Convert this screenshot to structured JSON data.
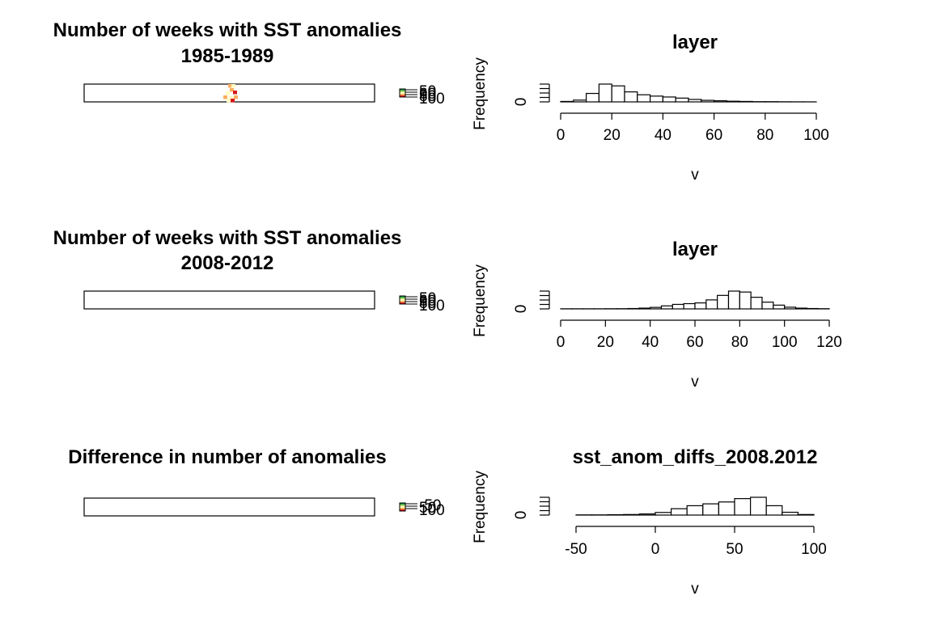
{
  "panels": [
    {
      "map": {
        "title_lines": [
          "Number of weeks with SST anomalies",
          "1985-1989"
        ],
        "legend_ticks": [
          "50",
          "60",
          "80",
          "100"
        ],
        "palette": [
          "#d7191c",
          "#fdae61",
          "#ffffbf",
          "#a6d96a",
          "#1a9641"
        ]
      },
      "hist": {
        "title": "layer",
        "xlabel": "v",
        "ylabel": "Frequency",
        "ytick": "0",
        "xticks": [
          "0",
          "20",
          "40",
          "60",
          "80",
          "100"
        ]
      }
    },
    {
      "map": {
        "title_lines": [
          "Number of weeks with SST anomalies",
          "2008-2012"
        ],
        "legend_ticks": [
          "50",
          "60",
          "80",
          "100"
        ],
        "palette": [
          "#d7191c",
          "#fdae61",
          "#ffffbf",
          "#a6d96a",
          "#1a9641"
        ]
      },
      "hist": {
        "title": "layer",
        "xlabel": "v",
        "ylabel": "Frequency",
        "ytick": "0",
        "xticks": [
          "0",
          "20",
          "40",
          "60",
          "80",
          "100",
          "120"
        ]
      }
    },
    {
      "map": {
        "title_lines": [
          "Difference in number of anomalies"
        ],
        "legend_ticks": [
          "-50",
          "50",
          "100"
        ],
        "palette": [
          "#d7191c",
          "#fdae61",
          "#ffffbf",
          "#a6d96a",
          "#1a9641"
        ]
      },
      "hist": {
        "title": "sst_anom_diffs_2008.2012",
        "xlabel": "v",
        "ylabel": "Frequency",
        "ytick": "0",
        "xticks": [
          "-50",
          "0",
          "50",
          "100"
        ]
      }
    }
  ],
  "chart_data": [
    {
      "type": "bar",
      "title": "layer",
      "xlabel": "v",
      "ylabel": "Frequency",
      "xlim": [
        0,
        100
      ],
      "bin_width": 5,
      "bin_starts": [
        0,
        5,
        10,
        15,
        20,
        25,
        30,
        35,
        40,
        45,
        50,
        55,
        60,
        65,
        70,
        75,
        80,
        85,
        90,
        95
      ],
      "values": [
        0.02,
        0.08,
        0.38,
        0.8,
        0.72,
        0.45,
        0.32,
        0.26,
        0.22,
        0.17,
        0.11,
        0.07,
        0.05,
        0.03,
        0.02,
        0.01,
        0.01,
        0.005,
        0.003,
        0.002
      ]
    },
    {
      "type": "bar",
      "title": "layer",
      "xlabel": "v",
      "ylabel": "Frequency",
      "xlim": [
        0,
        120
      ],
      "bin_width": 5,
      "bin_starts": [
        0,
        5,
        10,
        15,
        20,
        25,
        30,
        35,
        40,
        45,
        50,
        55,
        60,
        65,
        70,
        75,
        80,
        85,
        90,
        95,
        100,
        105,
        110,
        115
      ],
      "values": [
        0.005,
        0.005,
        0.005,
        0.005,
        0.008,
        0.01,
        0.02,
        0.04,
        0.08,
        0.16,
        0.24,
        0.28,
        0.32,
        0.48,
        0.72,
        0.95,
        0.9,
        0.62,
        0.36,
        0.2,
        0.09,
        0.04,
        0.02,
        0.01
      ]
    },
    {
      "type": "bar",
      "title": "sst_anom_diffs_2008.2012",
      "xlabel": "v",
      "ylabel": "Frequency",
      "xlim": [
        -50,
        100
      ],
      "bin_width": 10,
      "bin_starts": [
        -50,
        -40,
        -30,
        -20,
        -10,
        0,
        10,
        20,
        30,
        40,
        50,
        60,
        70,
        80,
        90
      ],
      "values": [
        0.01,
        0.01,
        0.02,
        0.03,
        0.06,
        0.14,
        0.34,
        0.5,
        0.6,
        0.7,
        0.88,
        0.95,
        0.5,
        0.15,
        0.03
      ]
    }
  ]
}
